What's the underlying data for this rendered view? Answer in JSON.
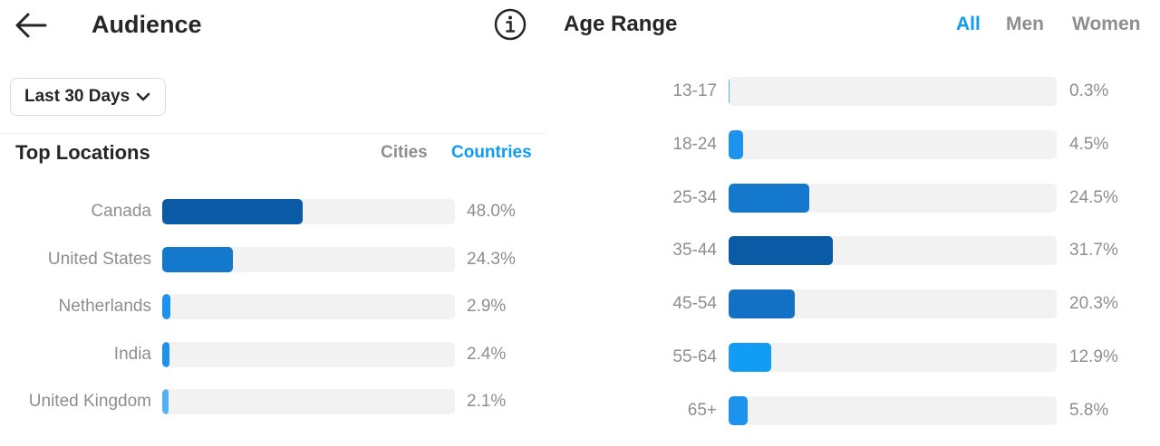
{
  "header": {
    "title": "Audience",
    "back_icon": "arrow-left-icon",
    "info_icon": "info-circle-icon"
  },
  "filter": {
    "date_range": "Last 30 Days",
    "icon": "chevron-down-icon"
  },
  "top_locations": {
    "title": "Top Locations",
    "tabs": [
      {
        "label": "Cities",
        "active": false
      },
      {
        "label": "Countries",
        "active": true
      }
    ],
    "rows": [
      {
        "label": "Canada",
        "value": "48.0%",
        "percent": 48.0,
        "color": "#0b5aa6"
      },
      {
        "label": "United States",
        "value": "24.3%",
        "percent": 24.3,
        "color": "#1479cc"
      },
      {
        "label": "Netherlands",
        "value": "2.9%",
        "percent": 2.9,
        "color": "#1d93ee"
      },
      {
        "label": "India",
        "value": "2.4%",
        "percent": 2.4,
        "color": "#1d93ee"
      },
      {
        "label": "United Kingdom",
        "value": "2.1%",
        "percent": 2.1,
        "color": "#52b0f5"
      }
    ]
  },
  "age_range": {
    "title": "Age Range",
    "tabs": [
      {
        "label": "All",
        "active": true
      },
      {
        "label": "Men",
        "active": false
      },
      {
        "label": "Women",
        "active": false
      }
    ],
    "rows": [
      {
        "label": "13-17",
        "value": "0.3%",
        "percent": 0.3,
        "color": "#52b0f5"
      },
      {
        "label": "18-24",
        "value": "4.5%",
        "percent": 4.5,
        "color": "#1d93ee"
      },
      {
        "label": "25-34",
        "value": "24.5%",
        "percent": 24.5,
        "color": "#1479cc"
      },
      {
        "label": "35-44",
        "value": "31.7%",
        "percent": 31.7,
        "color": "#0b5aa6"
      },
      {
        "label": "45-54",
        "value": "20.3%",
        "percent": 20.3,
        "color": "#1470c4"
      },
      {
        "label": "55-64",
        "value": "12.9%",
        "percent": 12.9,
        "color": "#119df5"
      },
      {
        "label": "65+",
        "value": "5.8%",
        "percent": 5.8,
        "color": "#1d93ee"
      }
    ]
  },
  "colors": {
    "accent": "#0f9cf0",
    "inactive_tab": "#8e8e8e",
    "track": "#f2f2f2"
  }
}
